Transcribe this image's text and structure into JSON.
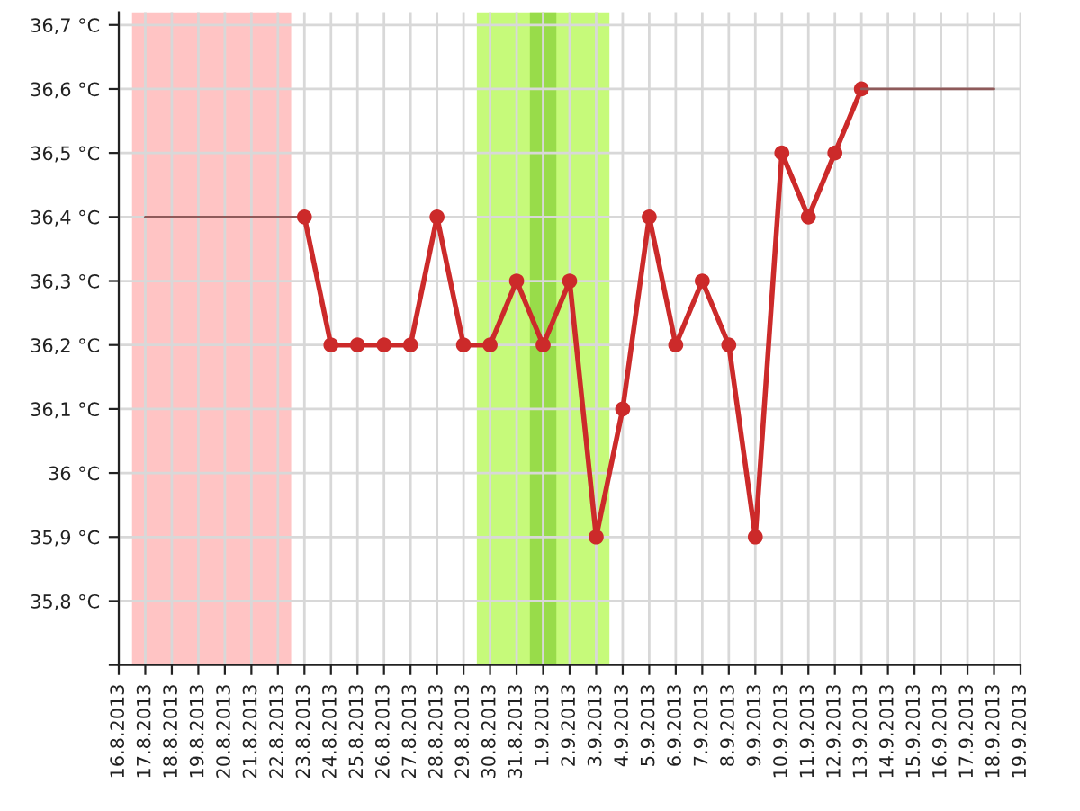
{
  "chart_data": {
    "type": "line",
    "series": [
      {
        "color": "#8f5a5a",
        "marker": "none",
        "x": [
          "2013-08-17",
          "2013-08-18",
          "2013-08-19",
          "2013-08-20",
          "2013-08-21",
          "2013-08-22",
          "2013-08-23"
        ],
        "values": [
          36.4,
          36.4,
          36.4,
          36.4,
          36.4,
          36.4,
          36.4
        ]
      },
      {
        "color": "#cc2a2a",
        "marker": "circle",
        "x": [
          "2013-08-23",
          "2013-08-24",
          "2013-08-25",
          "2013-08-26",
          "2013-08-27",
          "2013-08-28",
          "2013-08-29",
          "2013-08-30",
          "2013-08-31",
          "2013-09-01",
          "2013-09-02",
          "2013-09-03",
          "2013-09-04",
          "2013-09-05",
          "2013-09-06",
          "2013-09-07",
          "2013-09-08",
          "2013-09-09",
          "2013-09-10",
          "2013-09-11",
          "2013-09-12",
          "2013-09-13"
        ],
        "values": [
          36.4,
          36.2,
          36.2,
          36.2,
          36.2,
          36.4,
          36.2,
          36.2,
          36.3,
          36.2,
          36.3,
          35.9,
          36.1,
          36.4,
          36.2,
          36.3,
          36.2,
          35.9,
          36.5,
          36.4,
          36.5,
          36.6
        ]
      },
      {
        "color": "#8f5a5a",
        "marker": "none",
        "x": [
          "2013-09-13",
          "2013-09-14",
          "2013-09-15",
          "2013-09-16",
          "2013-09-17",
          "2013-09-18"
        ],
        "values": [
          36.6,
          36.6,
          36.6,
          36.6,
          36.6,
          36.6
        ]
      }
    ],
    "bands": [
      {
        "axis": "x",
        "from": "2013-08-16T12:00",
        "to": "2013-08-22T12:00",
        "color": "#ffc4c4"
      },
      {
        "axis": "x",
        "from": "2013-08-29T12:00",
        "to": "2013-09-03T12:00",
        "color": "#c6fa7a"
      },
      {
        "axis": "x",
        "from": "2013-08-31T12:00",
        "to": "2013-09-01T12:00",
        "color": "#98dc4a"
      }
    ],
    "xlim": [
      "2013-08-16",
      "2013-09-19"
    ],
    "xticks": [
      {
        "value": "2013-08-16",
        "label": "16.8.2013"
      },
      {
        "value": "2013-08-17",
        "label": "17.8.2013"
      },
      {
        "value": "2013-08-18",
        "label": "18.8.2013"
      },
      {
        "value": "2013-08-19",
        "label": "19.8.2013"
      },
      {
        "value": "2013-08-20",
        "label": "20.8.2013"
      },
      {
        "value": "2013-08-21",
        "label": "21.8.2013"
      },
      {
        "value": "2013-08-22",
        "label": "22.8.2013"
      },
      {
        "value": "2013-08-23",
        "label": "23.8.2013"
      },
      {
        "value": "2013-08-24",
        "label": "24.8.2013"
      },
      {
        "value": "2013-08-25",
        "label": "25.8.2013"
      },
      {
        "value": "2013-08-26",
        "label": "26.8.2013"
      },
      {
        "value": "2013-08-27",
        "label": "27.8.2013"
      },
      {
        "value": "2013-08-28",
        "label": "28.8.2013"
      },
      {
        "value": "2013-08-29",
        "label": "29.8.2013"
      },
      {
        "value": "2013-08-30",
        "label": "30.8.2013"
      },
      {
        "value": "2013-08-31",
        "label": "31.8.2013"
      },
      {
        "value": "2013-09-01",
        "label": "1.9.2013"
      },
      {
        "value": "2013-09-02",
        "label": "2.9.2013"
      },
      {
        "value": "2013-09-03",
        "label": "3.9.2013"
      },
      {
        "value": "2013-09-04",
        "label": "4.9.2013"
      },
      {
        "value": "2013-09-05",
        "label": "5.9.2013"
      },
      {
        "value": "2013-09-06",
        "label": "6.9.2013"
      },
      {
        "value": "2013-09-07",
        "label": "7.9.2013"
      },
      {
        "value": "2013-09-08",
        "label": "8.9.2013"
      },
      {
        "value": "2013-09-09",
        "label": "9.9.2013"
      },
      {
        "value": "2013-09-10",
        "label": "10.9.2013"
      },
      {
        "value": "2013-09-11",
        "label": "11.9.2013"
      },
      {
        "value": "2013-09-12",
        "label": "12.9.2013"
      },
      {
        "value": "2013-09-13",
        "label": "13.9.2013"
      },
      {
        "value": "2013-09-14",
        "label": "14.9.2013"
      },
      {
        "value": "2013-09-15",
        "label": "15.9.2013"
      },
      {
        "value": "2013-09-16",
        "label": "16.9.2013"
      },
      {
        "value": "2013-09-17",
        "label": "17.9.2013"
      },
      {
        "value": "2013-09-18",
        "label": "18.9.2013"
      },
      {
        "value": "2013-09-19",
        "label": "19.9.2013"
      }
    ],
    "ylim": [
      35.7,
      36.72
    ],
    "yticks": [
      {
        "value": 35.7,
        "label": null
      },
      {
        "value": 35.8,
        "label": "35,8 °C"
      },
      {
        "value": 35.9,
        "label": "35,9 °C"
      },
      {
        "value": 36.0,
        "label": "36 °C"
      },
      {
        "value": 36.1,
        "label": "36,1 °C"
      },
      {
        "value": 36.2,
        "label": "36,2 °C"
      },
      {
        "value": 36.3,
        "label": "36,3 °C"
      },
      {
        "value": 36.4,
        "label": "36,4 °C"
      },
      {
        "value": 36.5,
        "label": "36,5 °C"
      },
      {
        "value": 36.6,
        "label": "36,6 °C"
      },
      {
        "value": 36.7,
        "label": "36,7 °C"
      }
    ],
    "grid": true,
    "legend": false
  }
}
